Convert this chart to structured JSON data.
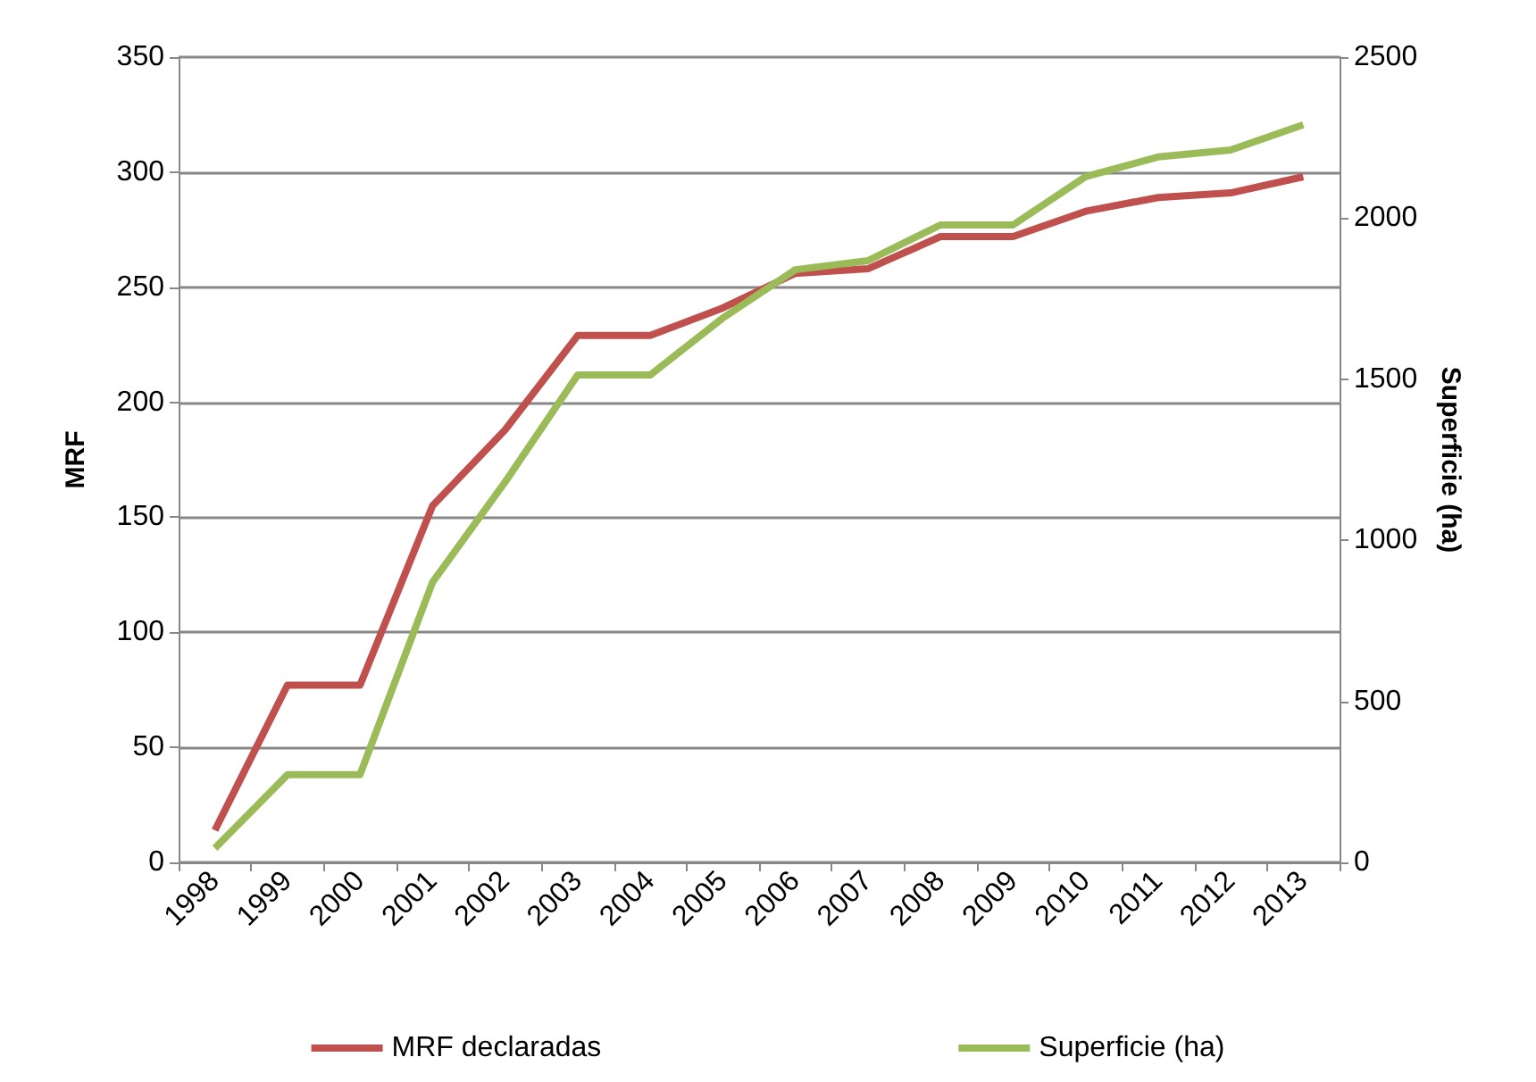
{
  "chart_data": {
    "type": "line",
    "ylabel": "MRF",
    "y2label": "Superficie (ha)",
    "categories": [
      "1998",
      "1999",
      "2000",
      "2001",
      "2002",
      "2003",
      "2004",
      "2005",
      "2006",
      "2007",
      "2008",
      "2009",
      "2010",
      "2011",
      "2012",
      "2013"
    ],
    "series": [
      {
        "name": "MRF declaradas",
        "color": "#c0504d",
        "values": [
          14,
          77,
          77,
          155,
          188,
          229,
          229,
          241,
          256,
          258,
          272,
          272,
          283,
          289,
          291,
          298
        ]
      },
      {
        "name": "Superficie (ha)",
        "color": "#9bbb59",
        "axis": "y2",
        "values": [
          44,
          272,
          272,
          870,
          1181,
          1513,
          1513,
          1690,
          1840,
          1868,
          1979,
          1979,
          2129,
          2190,
          2212,
          2290
        ]
      }
    ],
    "ylim": [
      0,
      350
    ],
    "yticks": [
      0,
      50,
      100,
      150,
      200,
      250,
      300,
      350
    ],
    "y2lim": [
      0,
      2500
    ],
    "y2ticks": [
      0,
      500,
      1000,
      1500,
      2000,
      2500
    ],
    "grid": "y",
    "legend": "bottom",
    "marker": "none",
    "line_style": "solid"
  }
}
